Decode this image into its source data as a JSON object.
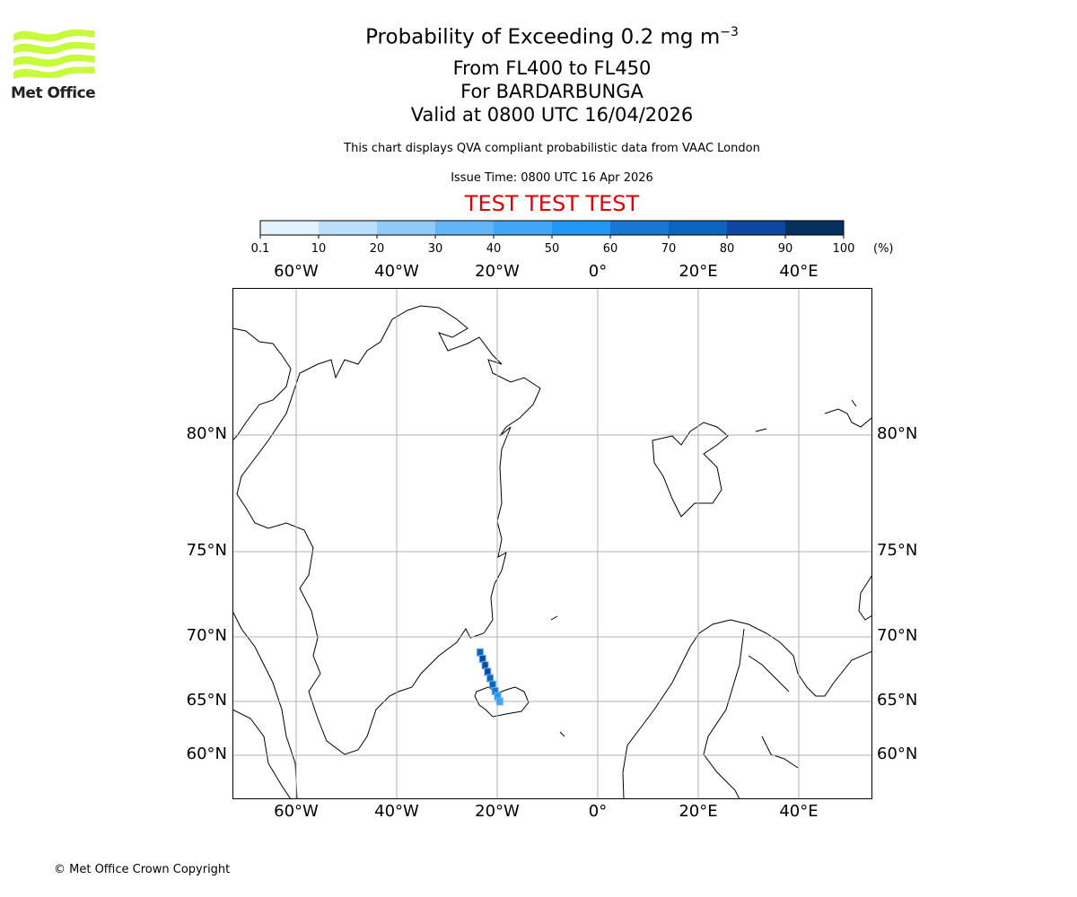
{
  "logo": {
    "text": "Met Office"
  },
  "title": {
    "main": "Probability of Exceeding 0.2 mg m",
    "superscript": "−3",
    "levels": "From FL400 to FL450",
    "volcano": "For BARDARBUNGA",
    "valid": "Valid at 0800 UTC 16/04/2026"
  },
  "subtitle": "This chart displays QVA compliant probabilistic data from VAAC London",
  "issue_time": "Issue Time: 0800 UTC 16 Apr 2026",
  "test_banner": "TEST TEST TEST",
  "footer": "© Met Office Crown Copyright",
  "chart_data": {
    "type": "heatmap",
    "title": "Probability of Exceeding 0.2 mg m-3",
    "colorbar": {
      "ticks": [
        "0.1",
        "10",
        "20",
        "30",
        "40",
        "50",
        "60",
        "70",
        "80",
        "90",
        "100"
      ],
      "unit": "(%)",
      "colors": [
        "#e3f2fd",
        "#bbdefb",
        "#90caf9",
        "#64b5f6",
        "#42a5f5",
        "#2196f3",
        "#1976d2",
        "#0d64bd",
        "#0d47a1",
        "#06305e"
      ]
    },
    "lon_labels": [
      "60°W",
      "40°W",
      "20°W",
      "0°",
      "20°E",
      "40°E"
    ],
    "lat_labels": [
      "80°N",
      "75°N",
      "70°N",
      "65°N",
      "60°N"
    ],
    "grid": true,
    "plume": {
      "description_points_lon_lat": [
        [
          -23.5,
          68.8
        ],
        [
          -23,
          68.3
        ],
        [
          -22.5,
          67.8
        ],
        [
          -22,
          67.3
        ],
        [
          -21.5,
          66.8
        ],
        [
          -21,
          66.3
        ],
        [
          -20.5,
          65.8
        ],
        [
          -20,
          65.4
        ],
        [
          -19.6,
          65.0
        ]
      ],
      "probability_percent": [
        70,
        80,
        80,
        80,
        70,
        70,
        60,
        50,
        40
      ]
    }
  }
}
